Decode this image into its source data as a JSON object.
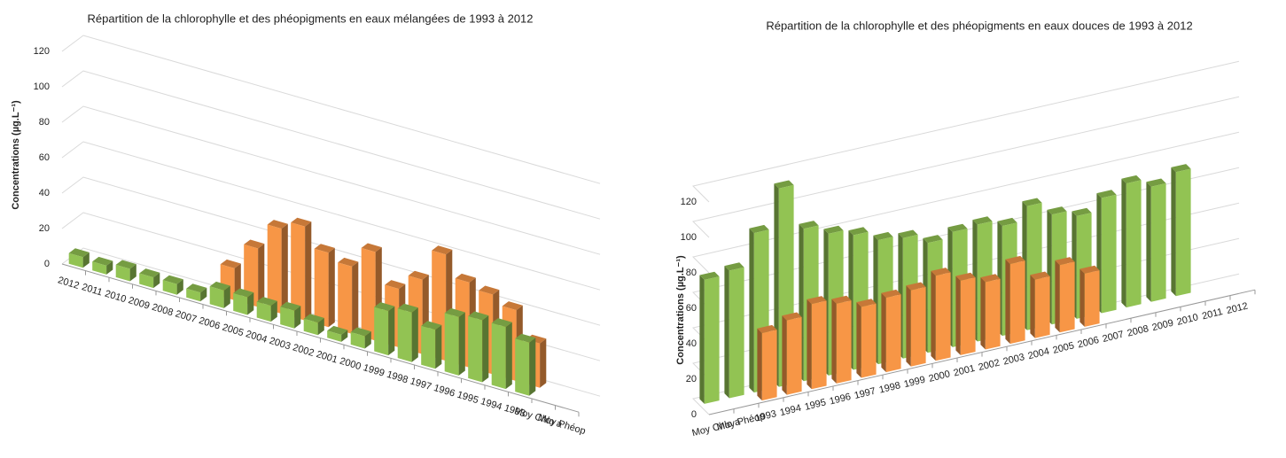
{
  "chart_data": [
    {
      "type": "bar3d",
      "title": "Répartition de la chlorophylle et des phéopigments en eaux mélangées de 1993 à 2012",
      "y_label": "Concentrations (µg.L⁻¹)",
      "categories": [
        "2012",
        "2011",
        "2010",
        "2009",
        "2008",
        "2007",
        "2006",
        "2005",
        "2004",
        "2003",
        "2002",
        "2001",
        "2000",
        "1999",
        "1998",
        "1997",
        "1996",
        "1995",
        "1994",
        "1993",
        "Moy Chlo a",
        "Moy Phéop"
      ],
      "series": [
        {
          "color": "#92c353",
          "values": [
            6,
            5,
            7,
            6,
            6,
            5,
            10,
            10,
            9,
            10,
            7,
            4,
            7,
            25,
            28,
            22,
            33,
            35,
            35,
            30,
            null,
            null
          ]
        },
        {
          "color": "#f79646",
          "values": [
            null,
            null,
            null,
            null,
            null,
            null,
            18,
            33,
            48,
            53,
            42,
            38,
            50,
            33,
            42,
            60,
            48,
            45,
            40,
            25,
            null,
            null
          ]
        }
      ],
      "ylim": [
        0,
        120
      ],
      "yticks": [
        0,
        20,
        40,
        60,
        80,
        100,
        120
      ],
      "grid": true
    },
    {
      "type": "bar3d",
      "title": "Répartition de la chlorophylle et des phéopigments en eaux douces de 1993 à 2012",
      "y_label": "Concentrations (µg.L⁻¹)",
      "categories": [
        "Moy Chlo a",
        "Moy Phéop",
        "1993",
        "1994",
        "1995",
        "1996",
        "1997",
        "1998",
        "1999",
        "2000",
        "2001",
        "2002",
        "2003",
        "2004",
        "2005",
        "2006",
        "2007",
        "2008",
        "2009",
        "2010",
        "2011",
        "2012"
      ],
      "series": [
        {
          "color": "#92c353",
          "values": [
            70,
            72,
            90,
            112,
            86,
            80,
            76,
            70,
            68,
            62,
            65,
            66,
            62,
            70,
            62,
            58,
            65,
            70,
            65,
            70,
            null,
            null
          ]
        },
        {
          "color": "#f79646",
          "values": [
            null,
            null,
            38,
            42,
            48,
            45,
            40,
            42,
            43,
            48,
            42,
            38,
            45,
            33,
            38,
            30,
            null,
            null,
            null,
            null,
            null,
            null
          ]
        }
      ],
      "ylim": [
        0,
        120
      ],
      "yticks": [
        0,
        20,
        40,
        60,
        80,
        100,
        120
      ],
      "grid": true
    }
  ]
}
